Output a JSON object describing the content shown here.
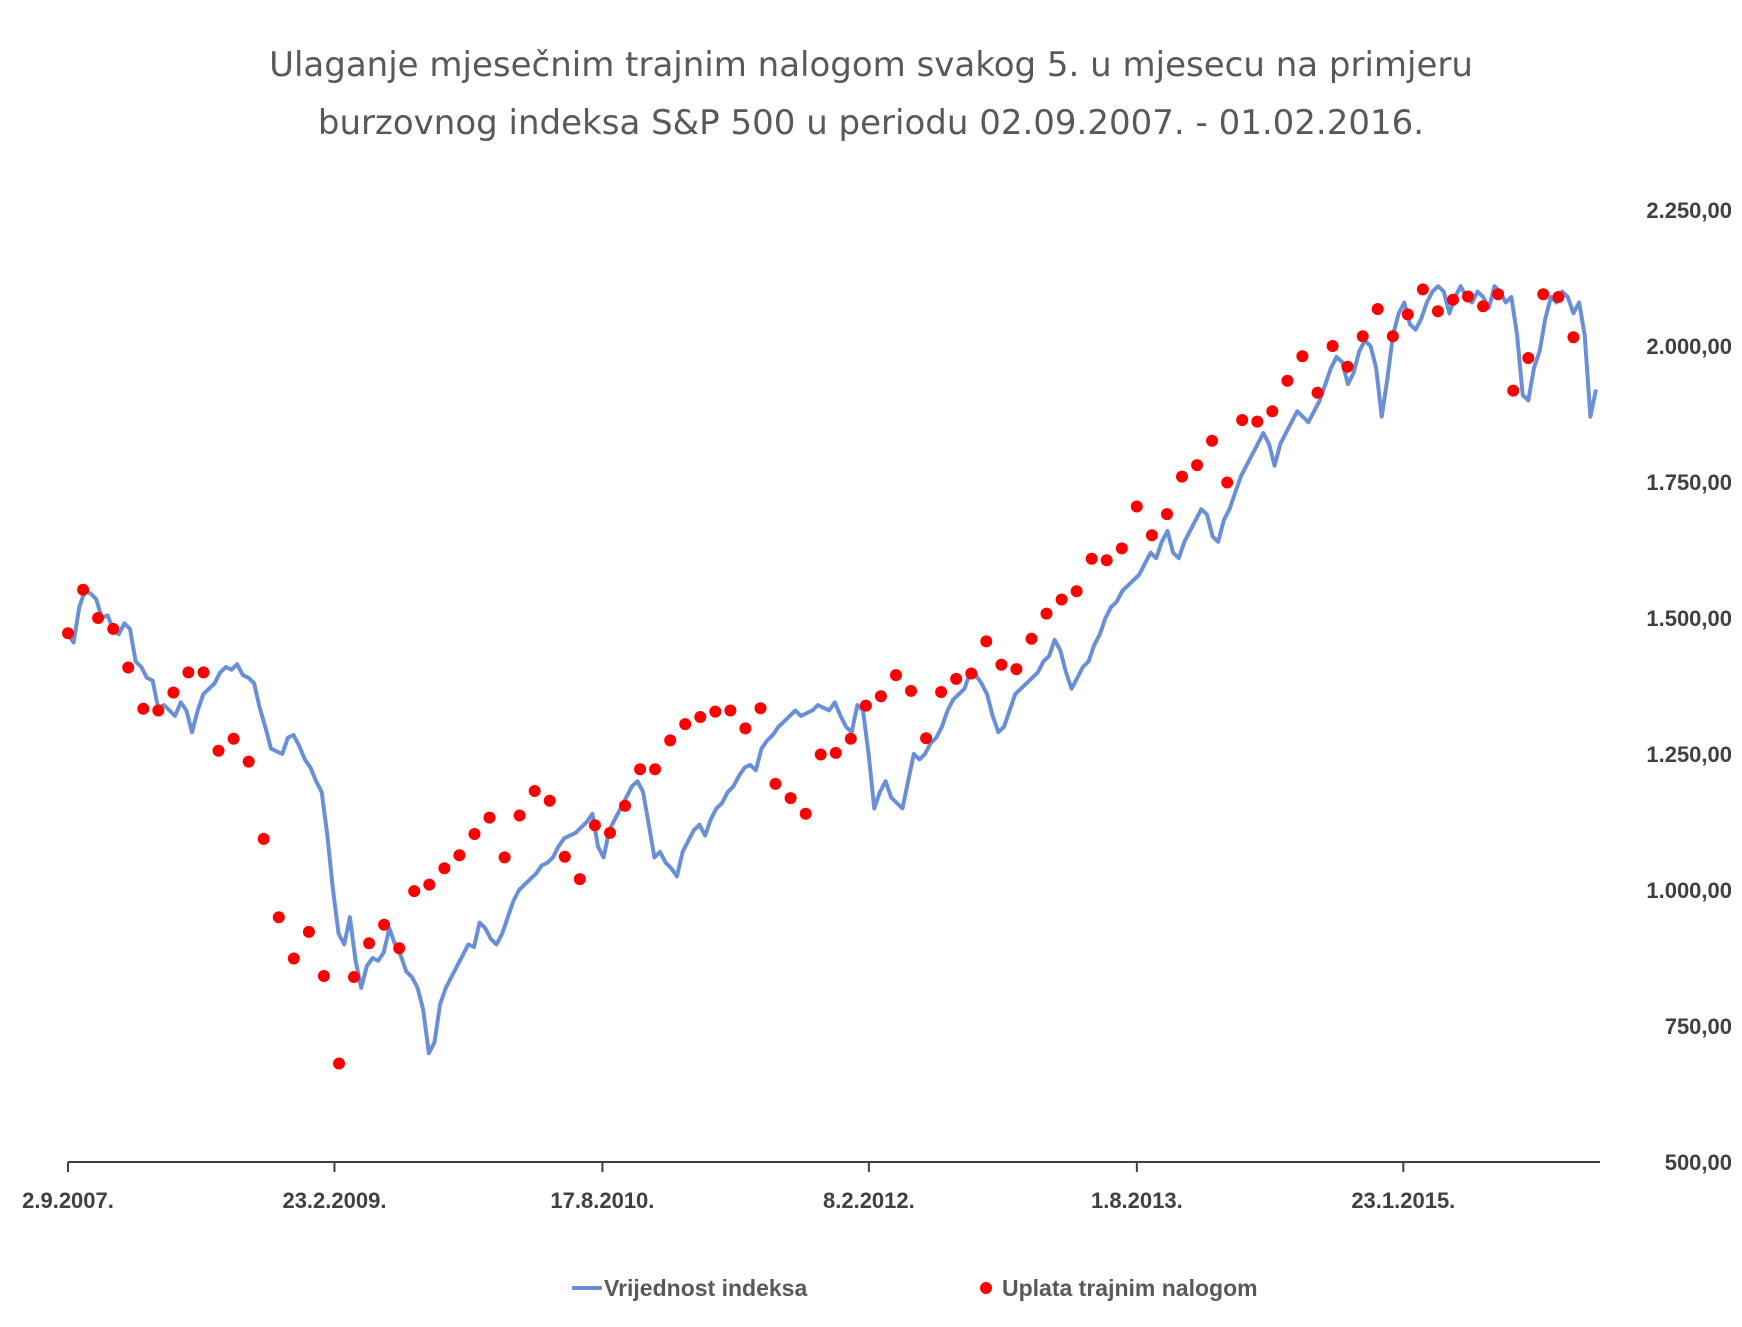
{
  "chart_data": {
    "type": "line",
    "title_lines": [
      "Ulaganje mjesečnim trajnim nalogom svakog 5. u mjesecu na primjeru",
      "burzovnog indeksa S&P 500 u periodu 02.09.2007. - 01.02.2016."
    ],
    "ylim": [
      500,
      2250
    ],
    "y_ticks": [
      "2.250,00",
      "2.000,00",
      "1.750,00",
      "1.500,00",
      "1.250,00",
      "1.000,00",
      "750,00",
      "500,00"
    ],
    "y_tick_values": [
      2250,
      2000,
      1750,
      1500,
      1250,
      1000,
      750,
      500
    ],
    "x_ticks": [
      "2.9.2007.",
      "23.2.2009.",
      "17.8.2010.",
      "8.2.2012.",
      "1.8.2013.",
      "23.1.2015."
    ],
    "x_tick_months": [
      0,
      17.7,
      35.5,
      53.2,
      71.0,
      88.7
    ],
    "x_range_months": [
      0,
      101.5
    ],
    "colors": {
      "line": "#6a8fd9",
      "marker": "#ff0000",
      "axis": "#404040"
    },
    "legend": {
      "position": "bottom",
      "line_label": "Vrijednost indeksa",
      "marker_label": "Uplata trajnim nalogom"
    },
    "series": [
      {
        "name": "Vrijednost indeksa",
        "kind": "line",
        "values": [
          1470,
          1455,
          1520,
          1550,
          1545,
          1535,
          1500,
          1505,
          1480,
          1470,
          1490,
          1480,
          1420,
          1410,
          1390,
          1385,
          1335,
          1340,
          1330,
          1320,
          1345,
          1330,
          1290,
          1330,
          1360,
          1370,
          1380,
          1400,
          1410,
          1405,
          1415,
          1395,
          1390,
          1380,
          1335,
          1300,
          1260,
          1255,
          1250,
          1280,
          1285,
          1265,
          1240,
          1225,
          1200,
          1180,
          1100,
          1000,
          920,
          900,
          950,
          870,
          820,
          860,
          875,
          870,
          885,
          930,
          900,
          880,
          850,
          840,
          820,
          780,
          700,
          720,
          790,
          820,
          840,
          860,
          880,
          900,
          895,
          940,
          930,
          910,
          900,
          920,
          950,
          980,
          1000,
          1010,
          1020,
          1030,
          1045,
          1050,
          1060,
          1080,
          1095,
          1100,
          1105,
          1115,
          1125,
          1140,
          1080,
          1060,
          1110,
          1130,
          1150,
          1170,
          1190,
          1200,
          1180,
          1120,
          1060,
          1070,
          1050,
          1040,
          1025,
          1070,
          1090,
          1110,
          1120,
          1100,
          1130,
          1150,
          1160,
          1180,
          1190,
          1210,
          1225,
          1230,
          1220,
          1260,
          1275,
          1285,
          1300,
          1310,
          1320,
          1330,
          1320,
          1325,
          1330,
          1340,
          1335,
          1330,
          1345,
          1320,
          1300,
          1290,
          1340,
          1330,
          1250,
          1150,
          1180,
          1200,
          1170,
          1160,
          1150,
          1200,
          1250,
          1240,
          1250,
          1270,
          1280,
          1300,
          1330,
          1350,
          1360,
          1370,
          1400,
          1395,
          1380,
          1360,
          1320,
          1290,
          1300,
          1330,
          1360,
          1370,
          1380,
          1390,
          1400,
          1420,
          1430,
          1460,
          1440,
          1400,
          1370,
          1390,
          1410,
          1420,
          1450,
          1470,
          1500,
          1520,
          1530,
          1550,
          1560,
          1570,
          1580,
          1600,
          1620,
          1610,
          1640,
          1660,
          1620,
          1610,
          1640,
          1660,
          1680,
          1700,
          1690,
          1650,
          1640,
          1680,
          1700,
          1730,
          1760,
          1780,
          1800,
          1820,
          1840,
          1820,
          1780,
          1820,
          1840,
          1860,
          1880,
          1870,
          1860,
          1880,
          1900,
          1930,
          1960,
          1980,
          1970,
          1930,
          1950,
          1990,
          2010,
          2000,
          1960,
          1870,
          1940,
          2020,
          2060,
          2080,
          2040,
          2030,
          2050,
          2080,
          2100,
          2110,
          2100,
          2060,
          2090,
          2110,
          2090,
          2080,
          2100,
          2090,
          2070,
          2110,
          2100,
          2080,
          2090,
          2020,
          1910,
          1900,
          1960,
          1990,
          2050,
          2090,
          2080,
          2100,
          2090,
          2060,
          2080,
          2020,
          1870,
          1920
        ]
      },
      {
        "name": "Uplata trajnim nalogom",
        "kind": "scatter",
        "values": [
          1472,
          1552,
          1500,
          1480,
          1409,
          1333,
          1330,
          1363,
          1400,
          1400,
          1256,
          1278,
          1236,
          1094,
          950,
          874,
          923,
          842,
          681,
          840,
          902,
          936,
          893,
          998,
          1010,
          1040,
          1064,
          1103,
          1133,
          1060,
          1137,
          1182,
          1164,
          1061,
          1020,
          1119,
          1105,
          1155,
          1222,
          1222,
          1275,
          1305,
          1318,
          1328,
          1330,
          1297,
          1334,
          1195,
          1169,
          1140,
          1249,
          1252,
          1278,
          1339,
          1356,
          1395,
          1366,
          1279,
          1364,
          1388,
          1398,
          1457,
          1414,
          1406,
          1462,
          1508,
          1534,
          1549,
          1609,
          1606,
          1628,
          1705,
          1652,
          1691,
          1760,
          1781,
          1826,
          1749,
          1864,
          1861,
          1880,
          1936,
          1981,
          1914,
          2000,
          1962,
          2018,
          2068,
          2018,
          2058,
          2104,
          2064,
          2085,
          2091,
          2073,
          2095,
          1918,
          1978,
          2095,
          2090,
          2016
        ]
      }
    ]
  }
}
